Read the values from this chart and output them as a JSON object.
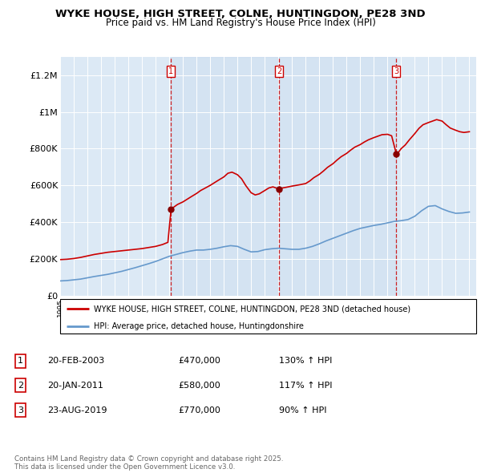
{
  "title_line1": "WYKE HOUSE, HIGH STREET, COLNE, HUNTINGDON, PE28 3ND",
  "title_line2": "Price paid vs. HM Land Registry's House Price Index (HPI)",
  "plot_bg_color": "#dce9f5",
  "hpi_color": "#6699cc",
  "price_color": "#cc0000",
  "dashed_color": "#cc0000",
  "shade_color": "#c5d8ee",
  "ylim": [
    0,
    1300000
  ],
  "yticks": [
    0,
    200000,
    400000,
    600000,
    800000,
    1000000,
    1200000
  ],
  "ytick_labels": [
    "£0",
    "£200K",
    "£400K",
    "£600K",
    "£800K",
    "£1M",
    "£1.2M"
  ],
  "sale_dates_year": [
    2003.13,
    2011.06,
    2019.65
  ],
  "sale_prices": [
    470000,
    580000,
    770000
  ],
  "sale_labels": [
    "1",
    "2",
    "3"
  ],
  "legend_line1": "WYKE HOUSE, HIGH STREET, COLNE, HUNTINGDON, PE28 3ND (detached house)",
  "legend_line2": "HPI: Average price, detached house, Huntingdonshire",
  "table_data": [
    [
      "1",
      "20-FEB-2003",
      "£470,000",
      "130% ↑ HPI"
    ],
    [
      "2",
      "20-JAN-2011",
      "£580,000",
      "117% ↑ HPI"
    ],
    [
      "3",
      "23-AUG-2019",
      "£770,000",
      "90% ↑ HPI"
    ]
  ],
  "footer": "Contains HM Land Registry data © Crown copyright and database right 2025.\nThis data is licensed under the Open Government Licence v3.0.",
  "hpi_data": [
    [
      1995.0,
      80000
    ],
    [
      1995.5,
      82000
    ],
    [
      1996.0,
      86000
    ],
    [
      1996.5,
      90000
    ],
    [
      1997.0,
      97000
    ],
    [
      1997.5,
      104000
    ],
    [
      1998.0,
      110000
    ],
    [
      1998.5,
      116000
    ],
    [
      1999.0,
      124000
    ],
    [
      1999.5,
      132000
    ],
    [
      2000.0,
      142000
    ],
    [
      2000.5,
      152000
    ],
    [
      2001.0,
      163000
    ],
    [
      2001.5,
      174000
    ],
    [
      2002.0,
      186000
    ],
    [
      2002.5,
      200000
    ],
    [
      2003.0,
      214000
    ],
    [
      2003.5,
      224000
    ],
    [
      2004.0,
      234000
    ],
    [
      2004.5,
      242000
    ],
    [
      2005.0,
      248000
    ],
    [
      2005.5,
      248000
    ],
    [
      2006.0,
      252000
    ],
    [
      2006.5,
      258000
    ],
    [
      2007.0,
      266000
    ],
    [
      2007.5,
      272000
    ],
    [
      2008.0,
      268000
    ],
    [
      2008.5,
      252000
    ],
    [
      2009.0,
      238000
    ],
    [
      2009.5,
      240000
    ],
    [
      2010.0,
      250000
    ],
    [
      2010.5,
      255000
    ],
    [
      2011.0,
      258000
    ],
    [
      2011.5,
      255000
    ],
    [
      2012.0,
      252000
    ],
    [
      2012.5,
      252000
    ],
    [
      2013.0,
      258000
    ],
    [
      2013.5,
      268000
    ],
    [
      2014.0,
      282000
    ],
    [
      2014.5,
      298000
    ],
    [
      2015.0,
      312000
    ],
    [
      2015.5,
      326000
    ],
    [
      2016.0,
      340000
    ],
    [
      2016.5,
      354000
    ],
    [
      2017.0,
      366000
    ],
    [
      2017.5,
      374000
    ],
    [
      2018.0,
      382000
    ],
    [
      2018.5,
      388000
    ],
    [
      2019.0,
      396000
    ],
    [
      2019.5,
      404000
    ],
    [
      2020.0,
      408000
    ],
    [
      2020.5,
      414000
    ],
    [
      2021.0,
      432000
    ],
    [
      2021.5,
      462000
    ],
    [
      2022.0,
      486000
    ],
    [
      2022.5,
      490000
    ],
    [
      2023.0,
      472000
    ],
    [
      2023.5,
      458000
    ],
    [
      2024.0,
      448000
    ],
    [
      2024.5,
      450000
    ],
    [
      2025.0,
      455000
    ]
  ],
  "price_data": [
    [
      1995.0,
      196000
    ],
    [
      1995.5,
      198000
    ],
    [
      1996.0,
      202000
    ],
    [
      1996.5,
      208000
    ],
    [
      1997.0,
      216000
    ],
    [
      1997.5,
      224000
    ],
    [
      1998.0,
      230000
    ],
    [
      1998.5,
      236000
    ],
    [
      1999.0,
      240000
    ],
    [
      1999.5,
      244000
    ],
    [
      2000.0,
      248000
    ],
    [
      2000.5,
      252000
    ],
    [
      2001.0,
      256000
    ],
    [
      2001.5,
      262000
    ],
    [
      2002.0,
      268000
    ],
    [
      2002.5,
      278000
    ],
    [
      2002.9,
      290000
    ],
    [
      2003.13,
      470000
    ],
    [
      2003.3,
      480000
    ],
    [
      2003.6,
      496000
    ],
    [
      2004.0,
      510000
    ],
    [
      2004.3,
      524000
    ],
    [
      2004.6,
      538000
    ],
    [
      2005.0,
      556000
    ],
    [
      2005.3,
      572000
    ],
    [
      2005.6,
      584000
    ],
    [
      2006.0,
      600000
    ],
    [
      2006.3,
      614000
    ],
    [
      2006.6,
      628000
    ],
    [
      2007.0,
      646000
    ],
    [
      2007.3,
      666000
    ],
    [
      2007.6,
      672000
    ],
    [
      2008.0,
      658000
    ],
    [
      2008.3,
      636000
    ],
    [
      2008.6,
      600000
    ],
    [
      2009.0,
      560000
    ],
    [
      2009.3,
      548000
    ],
    [
      2009.6,
      554000
    ],
    [
      2010.0,
      572000
    ],
    [
      2010.3,
      586000
    ],
    [
      2010.6,
      592000
    ],
    [
      2011.06,
      580000
    ],
    [
      2011.3,
      586000
    ],
    [
      2011.6,
      590000
    ],
    [
      2012.0,
      596000
    ],
    [
      2012.3,
      600000
    ],
    [
      2012.6,
      604000
    ],
    [
      2013.0,
      610000
    ],
    [
      2013.3,
      624000
    ],
    [
      2013.6,
      642000
    ],
    [
      2014.0,
      660000
    ],
    [
      2014.3,
      678000
    ],
    [
      2014.6,
      698000
    ],
    [
      2015.0,
      718000
    ],
    [
      2015.3,
      738000
    ],
    [
      2015.6,
      756000
    ],
    [
      2016.0,
      774000
    ],
    [
      2016.3,
      792000
    ],
    [
      2016.6,
      808000
    ],
    [
      2017.0,
      822000
    ],
    [
      2017.3,
      836000
    ],
    [
      2017.6,
      848000
    ],
    [
      2018.0,
      860000
    ],
    [
      2018.3,
      868000
    ],
    [
      2018.6,
      876000
    ],
    [
      2019.0,
      878000
    ],
    [
      2019.3,
      870000
    ],
    [
      2019.65,
      770000
    ],
    [
      2019.8,
      780000
    ],
    [
      2020.0,
      800000
    ],
    [
      2020.3,
      820000
    ],
    [
      2020.6,
      848000
    ],
    [
      2021.0,
      882000
    ],
    [
      2021.3,
      910000
    ],
    [
      2021.6,
      930000
    ],
    [
      2022.0,
      942000
    ],
    [
      2022.3,
      950000
    ],
    [
      2022.6,
      958000
    ],
    [
      2023.0,
      950000
    ],
    [
      2023.3,
      930000
    ],
    [
      2023.6,
      912000
    ],
    [
      2024.0,
      900000
    ],
    [
      2024.3,
      892000
    ],
    [
      2024.6,
      888000
    ],
    [
      2025.0,
      892000
    ]
  ]
}
